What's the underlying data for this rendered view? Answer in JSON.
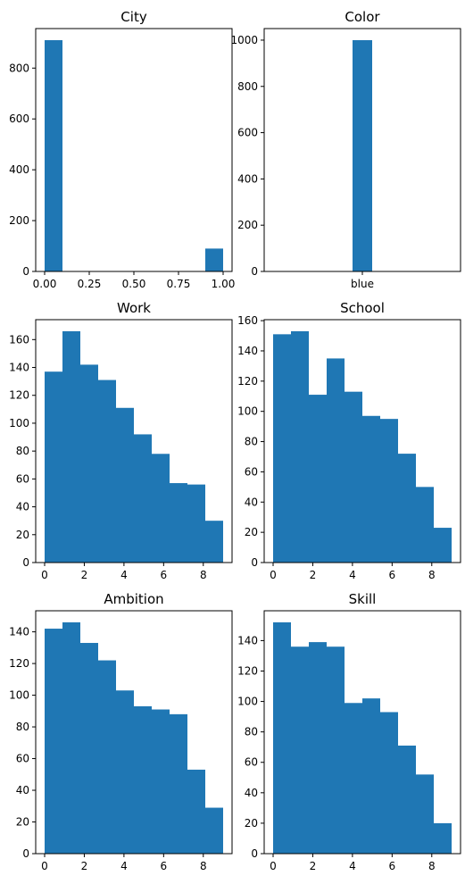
{
  "chart_data": [
    {
      "type": "bar",
      "title": "City",
      "xlabel": "",
      "ylabel": "",
      "bins": [
        [
          0.0,
          0.1
        ],
        [
          0.1,
          0.2
        ],
        [
          0.2,
          0.3
        ],
        [
          0.3,
          0.4
        ],
        [
          0.4,
          0.5
        ],
        [
          0.5,
          0.6
        ],
        [
          0.6,
          0.7
        ],
        [
          0.7,
          0.8
        ],
        [
          0.8,
          0.9
        ],
        [
          0.9,
          1.0
        ]
      ],
      "values": [
        910,
        0,
        0,
        0,
        0,
        0,
        0,
        0,
        0,
        90
      ],
      "xlim": [
        -0.05,
        1.05
      ],
      "ylim": [
        0,
        955.5
      ],
      "xticks": [
        0.0,
        0.25,
        0.5,
        0.75,
        1.0
      ],
      "xtick_labels": [
        "0.00",
        "0.25",
        "0.50",
        "0.75",
        "1.00"
      ],
      "yticks": [
        0,
        200,
        400,
        600,
        800
      ],
      "ytick_labels": [
        "0",
        "200",
        "400",
        "600",
        "800"
      ],
      "grid": false,
      "color": "#1f77b4"
    },
    {
      "type": "bar",
      "title": "Color",
      "xlabel": "",
      "ylabel": "",
      "bins": [
        [
          -0.05,
          0.05
        ]
      ],
      "values": [
        1000
      ],
      "xlim": [
        -0.5,
        0.5
      ],
      "ylim": [
        0,
        1050
      ],
      "xticks": [
        0
      ],
      "xtick_labels": [
        "blue"
      ],
      "yticks": [
        0,
        200,
        400,
        600,
        800,
        1000
      ],
      "ytick_labels": [
        "0",
        "200",
        "400",
        "600",
        "800",
        "1000"
      ],
      "grid": false,
      "color": "#1f77b4"
    },
    {
      "type": "bar",
      "title": "Work",
      "xlabel": "",
      "ylabel": "",
      "bins": [
        [
          0.0,
          0.9
        ],
        [
          0.9,
          1.8
        ],
        [
          1.8,
          2.7
        ],
        [
          2.7,
          3.6
        ],
        [
          3.6,
          4.5
        ],
        [
          4.5,
          5.4
        ],
        [
          5.4,
          6.3
        ],
        [
          6.3,
          7.2
        ],
        [
          7.2,
          8.1
        ],
        [
          8.1,
          9.0
        ]
      ],
      "values": [
        137,
        166,
        142,
        131,
        111,
        92,
        78,
        57,
        56,
        30
      ],
      "xlim": [
        -0.45,
        9.45
      ],
      "ylim": [
        0,
        174.3
      ],
      "xticks": [
        0,
        2,
        4,
        6,
        8
      ],
      "xtick_labels": [
        "0",
        "2",
        "4",
        "6",
        "8"
      ],
      "yticks": [
        0,
        20,
        40,
        60,
        80,
        100,
        120,
        140,
        160
      ],
      "ytick_labels": [
        "0",
        "20",
        "40",
        "60",
        "80",
        "100",
        "120",
        "140",
        "160"
      ],
      "grid": false,
      "color": "#1f77b4"
    },
    {
      "type": "bar",
      "title": "School",
      "xlabel": "",
      "ylabel": "",
      "bins": [
        [
          0.0,
          0.9
        ],
        [
          0.9,
          1.8
        ],
        [
          1.8,
          2.7
        ],
        [
          2.7,
          3.6
        ],
        [
          3.6,
          4.5
        ],
        [
          4.5,
          5.4
        ],
        [
          5.4,
          6.3
        ],
        [
          6.3,
          7.2
        ],
        [
          7.2,
          8.1
        ],
        [
          8.1,
          9.0
        ]
      ],
      "values": [
        151,
        153,
        111,
        135,
        113,
        97,
        95,
        72,
        50,
        23
      ],
      "xlim": [
        -0.45,
        9.45
      ],
      "ylim": [
        0,
        160.65
      ],
      "xticks": [
        0,
        2,
        4,
        6,
        8
      ],
      "xtick_labels": [
        "0",
        "2",
        "4",
        "6",
        "8"
      ],
      "yticks": [
        0,
        20,
        40,
        60,
        80,
        100,
        120,
        140,
        160
      ],
      "ytick_labels": [
        "0",
        "20",
        "40",
        "60",
        "80",
        "100",
        "120",
        "140",
        "160"
      ],
      "grid": false,
      "color": "#1f77b4"
    },
    {
      "type": "bar",
      "title": "Ambition",
      "xlabel": "",
      "ylabel": "",
      "bins": [
        [
          0.0,
          0.9
        ],
        [
          0.9,
          1.8
        ],
        [
          1.8,
          2.7
        ],
        [
          2.7,
          3.6
        ],
        [
          3.6,
          4.5
        ],
        [
          4.5,
          5.4
        ],
        [
          5.4,
          6.3
        ],
        [
          6.3,
          7.2
        ],
        [
          7.2,
          8.1
        ],
        [
          8.1,
          9.0
        ]
      ],
      "values": [
        142,
        146,
        133,
        122,
        103,
        93,
        91,
        88,
        53,
        29
      ],
      "xlim": [
        -0.45,
        9.45
      ],
      "ylim": [
        0,
        153.3
      ],
      "xticks": [
        0,
        2,
        4,
        6,
        8
      ],
      "xtick_labels": [
        "0",
        "2",
        "4",
        "6",
        "8"
      ],
      "yticks": [
        0,
        20,
        40,
        60,
        80,
        100,
        120,
        140
      ],
      "ytick_labels": [
        "0",
        "20",
        "40",
        "60",
        "80",
        "100",
        "120",
        "140"
      ],
      "grid": false,
      "color": "#1f77b4"
    },
    {
      "type": "bar",
      "title": "Skill",
      "xlabel": "",
      "ylabel": "",
      "bins": [
        [
          0.0,
          0.9
        ],
        [
          0.9,
          1.8
        ],
        [
          1.8,
          2.7
        ],
        [
          2.7,
          3.6
        ],
        [
          3.6,
          4.5
        ],
        [
          4.5,
          5.4
        ],
        [
          5.4,
          6.3
        ],
        [
          6.3,
          7.2
        ],
        [
          7.2,
          8.1
        ],
        [
          8.1,
          9.0
        ]
      ],
      "values": [
        152,
        136,
        139,
        136,
        99,
        102,
        93,
        71,
        52,
        20
      ],
      "xlim": [
        -0.45,
        9.45
      ],
      "ylim": [
        0,
        159.6
      ],
      "xticks": [
        0,
        2,
        4,
        6,
        8
      ],
      "xtick_labels": [
        "0",
        "2",
        "4",
        "6",
        "8"
      ],
      "yticks": [
        0,
        20,
        40,
        60,
        80,
        100,
        120,
        140
      ],
      "ytick_labels": [
        "0",
        "20",
        "40",
        "60",
        "80",
        "100",
        "120",
        "140"
      ],
      "grid": false,
      "color": "#1f77b4"
    }
  ]
}
